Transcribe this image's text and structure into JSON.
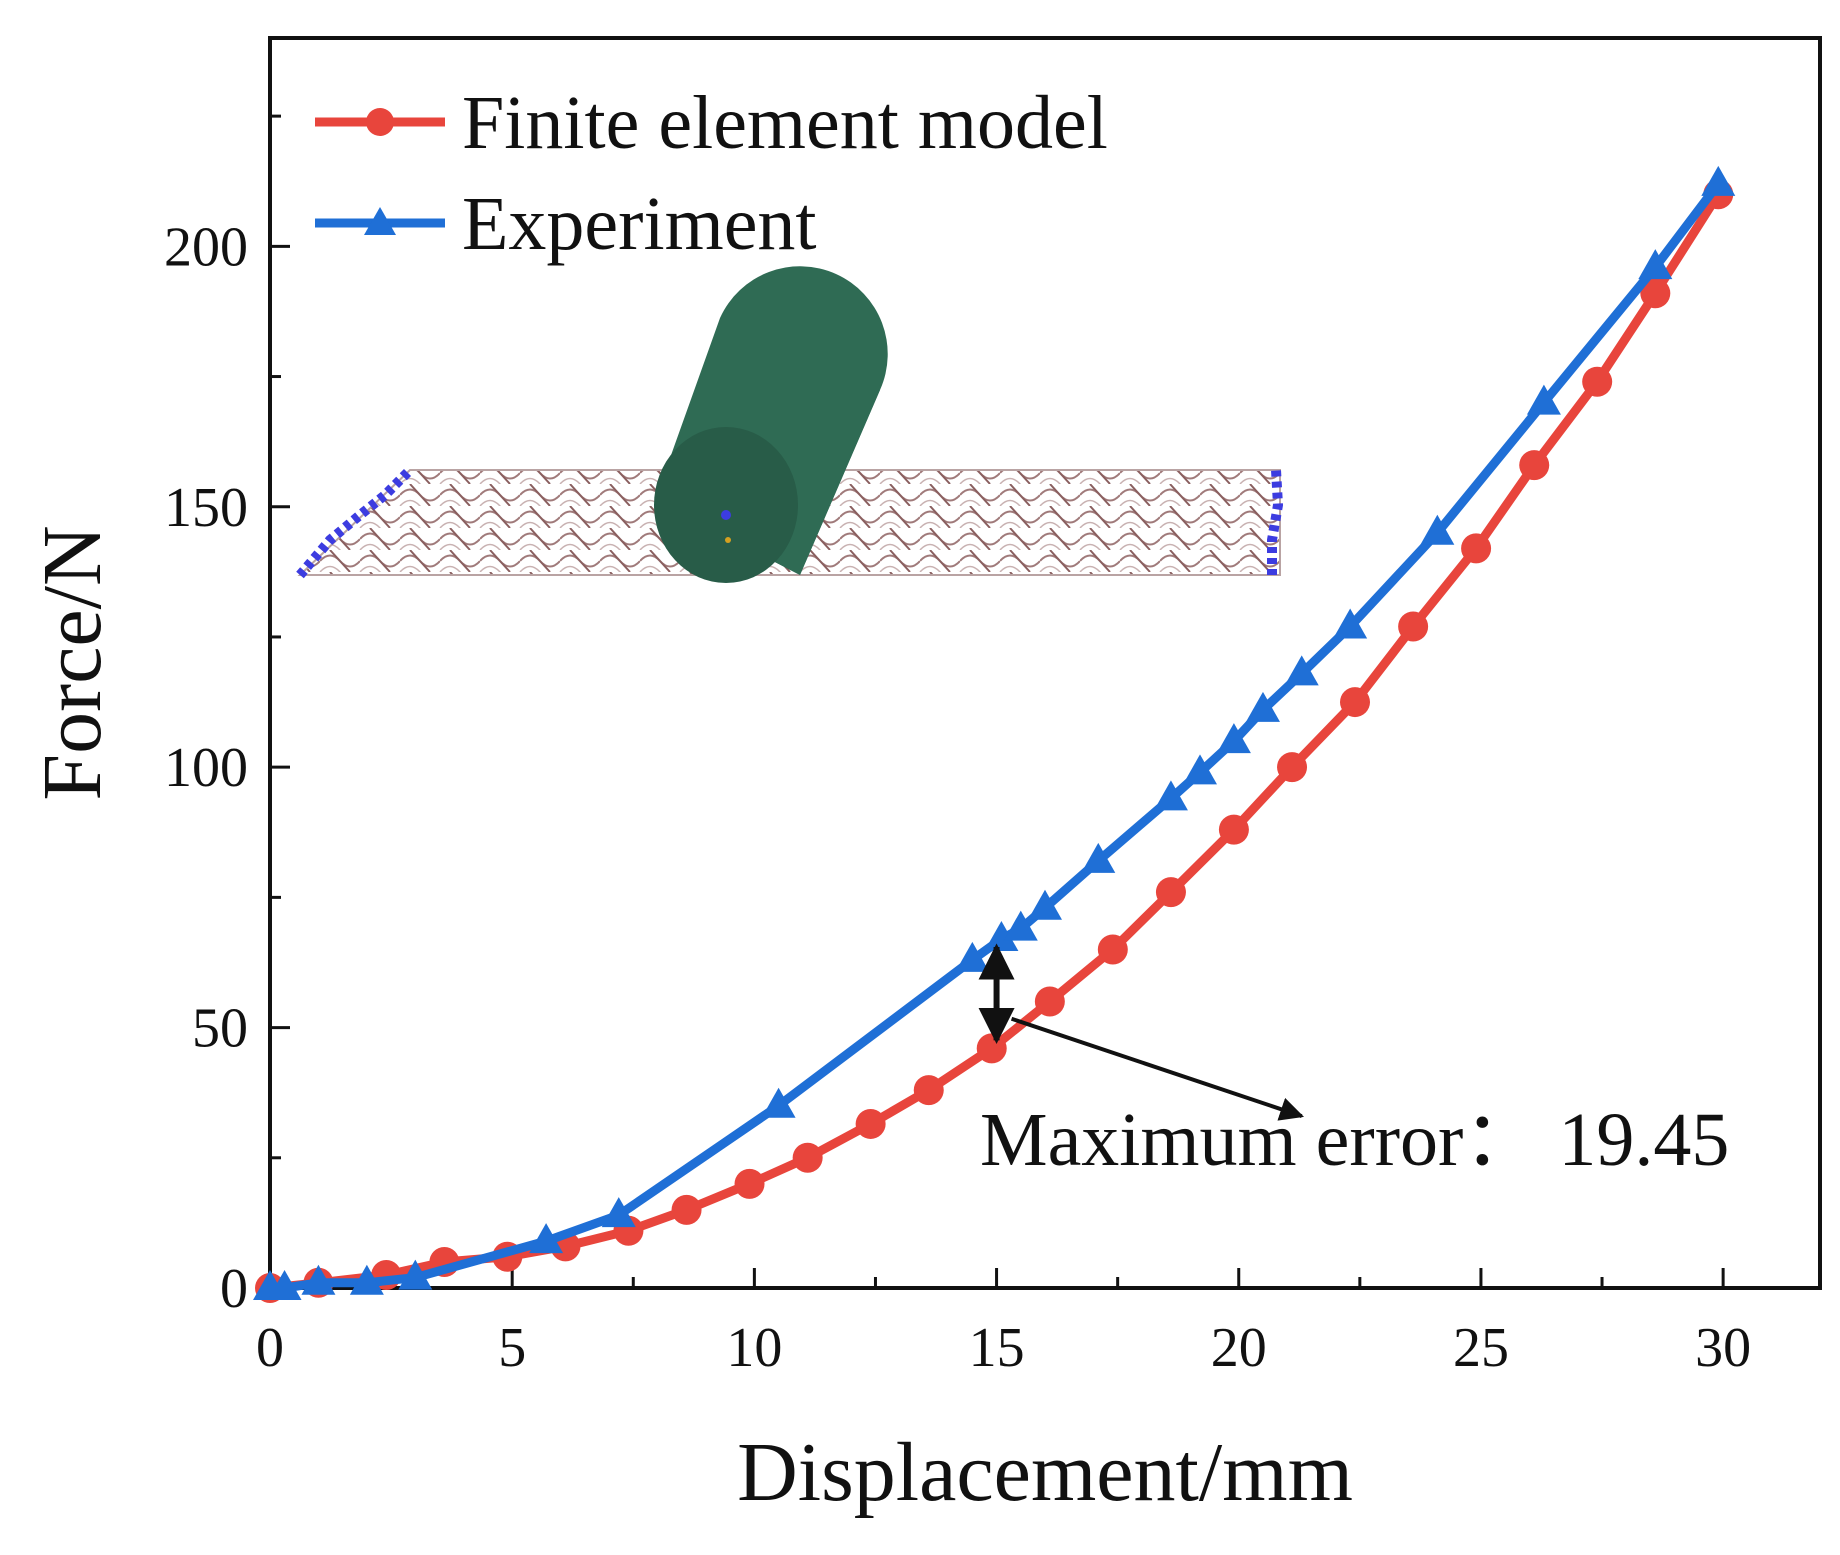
{
  "colors": {
    "fem": "#e8453c",
    "experiment": "#1f6fd6",
    "axis": "#111111",
    "cylinder": "#2f6b54",
    "mesh": "#a07a7a",
    "mesh_edge": "#3c3ce0"
  },
  "chart_data": {
    "type": "line",
    "title": "",
    "xlabel": "Displacement/mm",
    "ylabel": "Force/N",
    "xlim": [
      0,
      32
    ],
    "ylim": [
      0,
      240
    ],
    "xticks": [
      0,
      5,
      10,
      15,
      20,
      25,
      30
    ],
    "yticks": [
      0,
      50,
      100,
      150,
      200
    ],
    "grid": false,
    "legend_position": "top-left",
    "series": [
      {
        "name": "Finite element model",
        "marker": "circle",
        "color": "#e8453c",
        "x": [
          0,
          1,
          2.4,
          3.6,
          4.9,
          6.1,
          7.4,
          8.6,
          9.9,
          11.1,
          12.4,
          13.6,
          14.9,
          16.1,
          17.4,
          18.6,
          19.9,
          21.1,
          22.4,
          23.6,
          24.9,
          26.1,
          27.4,
          28.6,
          29.9
        ],
        "y": [
          0,
          1,
          2.5,
          5,
          6,
          8,
          11,
          15,
          20,
          25,
          31.5,
          38,
          46,
          55,
          65,
          76,
          88,
          100,
          112.5,
          127,
          142,
          158,
          174,
          191,
          210
        ]
      },
      {
        "name": "Experiment",
        "marker": "triangle",
        "color": "#1f6fd6",
        "x": [
          0,
          0.3,
          1,
          2,
          3,
          5.7,
          7.2,
          10.5,
          14.5,
          15.1,
          15.5,
          16,
          17.1,
          18.6,
          19.2,
          19.9,
          20.5,
          21.3,
          22.3,
          24.1,
          26.3,
          28.6,
          29.9
        ],
        "y": [
          0,
          0,
          1,
          1,
          2,
          9,
          14,
          35,
          63,
          67,
          69,
          73,
          82,
          94,
          99,
          105,
          111,
          118,
          127,
          145,
          170,
          196,
          212
        ]
      }
    ],
    "annotations": [
      {
        "text": "Maximum error： 19.45",
        "x": 15,
        "y_from": 46,
        "y_to": 67
      }
    ],
    "inset": "finite element mesh with green roller cylinder"
  }
}
